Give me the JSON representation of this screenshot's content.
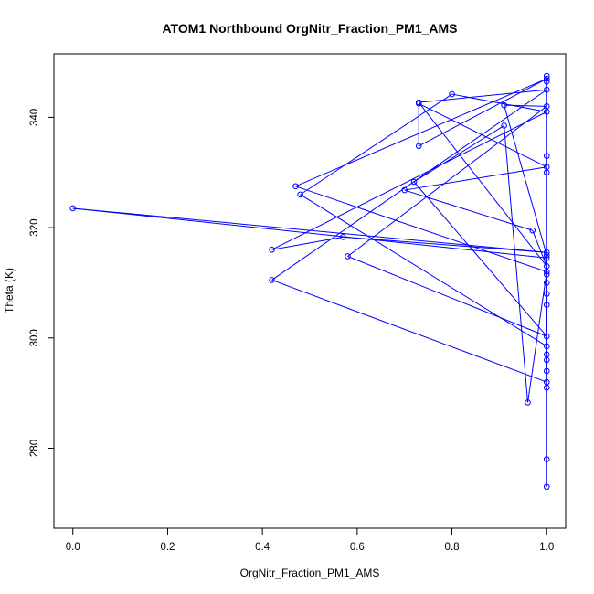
{
  "chart_data": {
    "type": "line",
    "title": "ATOM1 Northbound OrgNitr_Fraction_PM1_AMS",
    "xlabel": "OrgNitr_Fraction_PM1_AMS",
    "ylabel": "Theta (K)",
    "xlim": [
      -0.04,
      1.04
    ],
    "ylim": [
      265.5,
      351.5
    ],
    "xticks": [
      0.0,
      0.2,
      0.4,
      0.6,
      0.8,
      1.0
    ],
    "xtick_labels": [
      "0.0",
      "0.2",
      "0.4",
      "0.6",
      "0.8",
      "1.0"
    ],
    "yticks": [
      280,
      300,
      320,
      340
    ],
    "ytick_labels": [
      "280",
      "300",
      "320",
      "340"
    ],
    "series_color": "#0000ff",
    "markers": "open-circle",
    "grid": false,
    "series": [
      {
        "x": [
          1.0,
          1.0,
          1.0,
          1.0,
          0.0,
          1.0,
          0.57,
          0.42,
          1.0,
          0.8,
          0.48,
          1.0,
          1.0,
          0.42,
          1.0,
          0.73,
          1.0,
          0.97,
          0.7,
          1.0,
          0.73,
          0.73,
          1.0,
          0.47,
          1.0,
          0.96,
          0.91,
          0.72,
          1.0,
          0.58,
          1.0,
          0.91,
          1.0,
          1.0,
          1.0,
          1.0,
          1.0,
          1.0,
          1.0,
          1.0,
          1.0,
          1.0,
          1.0,
          1.0
        ],
        "y": [
          273.0,
          278.0,
          291.0,
          314.5,
          323.5,
          315.5,
          318.3,
          316.0,
          341.0,
          344.2,
          326.0,
          298.5,
          292.0,
          310.5,
          345.0,
          342.7,
          313.0,
          319.5,
          326.8,
          331.0,
          342.5,
          334.8,
          347.0,
          327.5,
          312.0,
          288.3,
          338.5,
          328.3,
          300.3,
          314.8,
          342.0,
          342.2,
          315.0,
          297.0,
          296.0,
          294.0,
          306.0,
          308.0,
          310.0,
          311.5,
          330.0,
          333.0,
          346.5,
          347.5
        ]
      }
    ]
  }
}
